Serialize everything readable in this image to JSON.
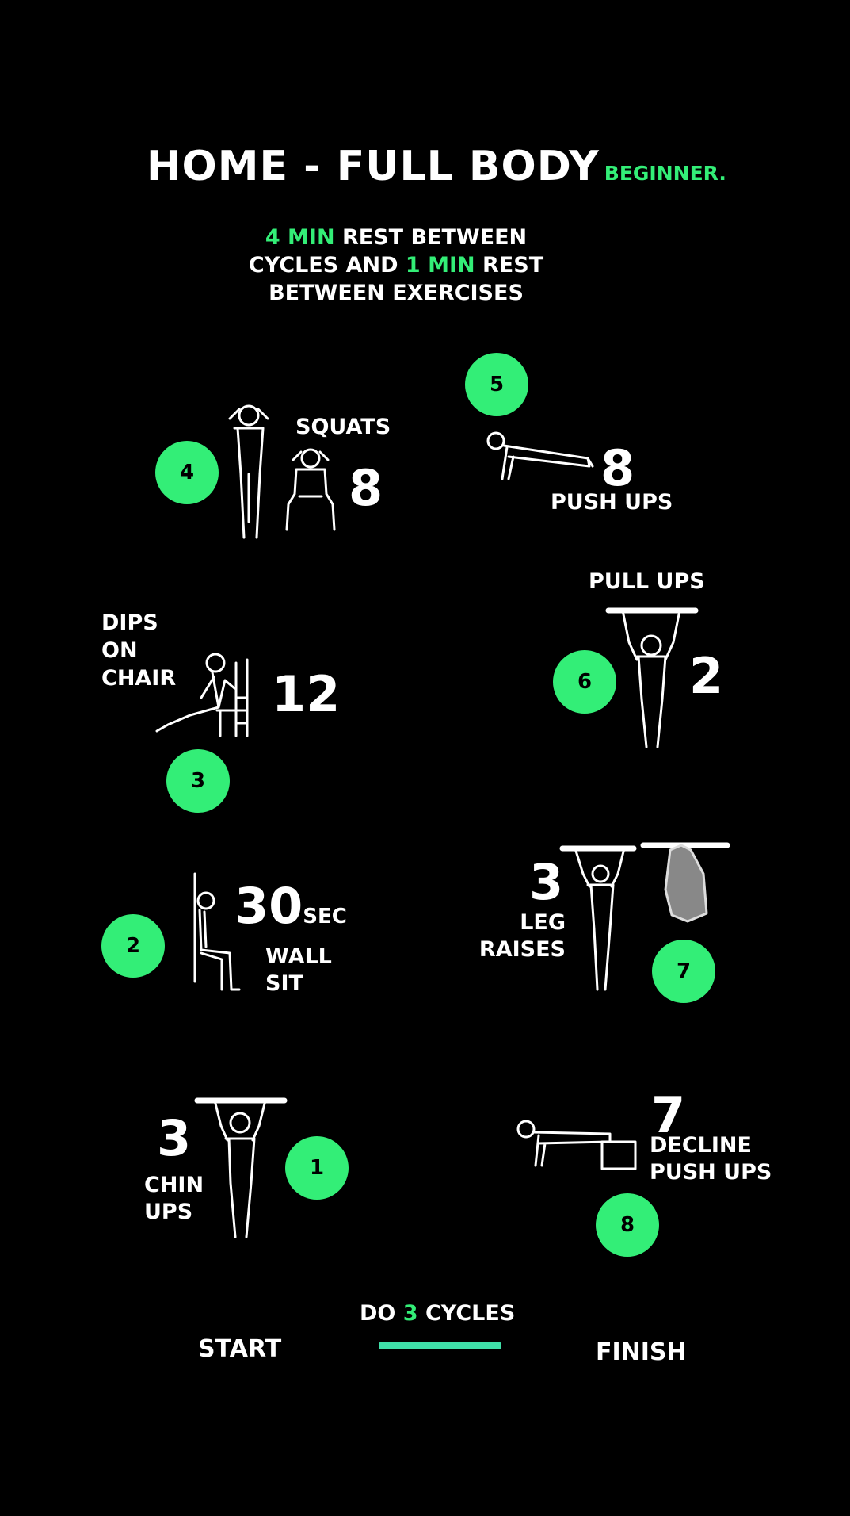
{
  "colors": {
    "accent": "#33ee77",
    "accent2": "#3fe0a8",
    "background": "#000000",
    "text": "#ffffff"
  },
  "header": {
    "title": "HOME - FULL BODY",
    "level": "BEGINNER."
  },
  "rest": {
    "min1": "4 MIN",
    "text1": " REST BETWEEN",
    "text2": "CYCLES AND ",
    "min2": "1 MIN",
    "text3": " REST",
    "text4": "BETWEEN EXERCISES"
  },
  "exercises": [
    {
      "step": "1",
      "reps": "3",
      "name_line1": "CHIN",
      "name_line2": "UPS",
      "icon": "chin-up-figure"
    },
    {
      "step": "2",
      "reps": "30",
      "unit": "SEC",
      "name_line1": "WALL",
      "name_line2": "SIT",
      "icon": "wall-sit-figure"
    },
    {
      "step": "3",
      "reps": "12",
      "name_line1": "DIPS",
      "name_line2": "ON",
      "name_line3": "CHAIR",
      "icon": "chair-dip-figure"
    },
    {
      "step": "4",
      "reps": "8",
      "name": "SQUATS",
      "icon": "squat-figure"
    },
    {
      "step": "5",
      "reps": "8",
      "name": "PUSH UPS",
      "icon": "push-up-figure"
    },
    {
      "step": "6",
      "reps": "2",
      "name": "PULL UPS",
      "icon": "pull-up-figure"
    },
    {
      "step": "7",
      "reps": "3",
      "name_line1": "LEG",
      "name_line2": "RAISES",
      "icon": "leg-raise-figure"
    },
    {
      "step": "8",
      "reps": "7",
      "name_line1": "DECLINE",
      "name_line2": "PUSH UPS",
      "icon": "decline-push-up-figure"
    }
  ],
  "footer": {
    "cycles_prefix": "DO ",
    "cycles_num": "3",
    "cycles_suffix": " CYCLES",
    "start": "START",
    "finish": "FINISH"
  }
}
